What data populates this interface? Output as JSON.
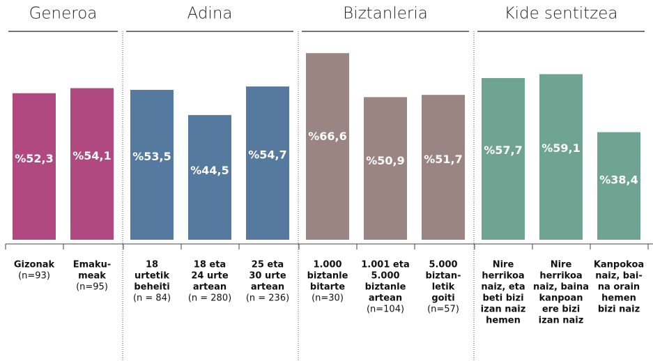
{
  "chart_data": {
    "type": "bar",
    "groups": [
      {
        "title": "Generoa",
        "color": "#b0497f",
        "categories": [
          {
            "lines": [
              "Gizonak"
            ],
            "n": "(n=93)"
          },
          {
            "lines": [
              "Emaku-",
              "meak"
            ],
            "n": "(n=95)"
          }
        ],
        "values": [
          52.3,
          54.1
        ],
        "value_labels": [
          "%52,3",
          "%54,1"
        ]
      },
      {
        "title": "Adina",
        "color": "#55799f",
        "categories": [
          {
            "lines": [
              "18",
              "urtetik",
              "beheiti"
            ],
            "n": "(n = 84)"
          },
          {
            "lines": [
              "18 eta",
              "24 urte",
              "artean"
            ],
            "n": "(n = 280)"
          },
          {
            "lines": [
              "25 eta",
              "30 urte",
              "artean"
            ],
            "n": "(n = 236)"
          }
        ],
        "values": [
          53.5,
          44.5,
          54.7
        ],
        "value_labels": [
          "%53,5",
          "%44,5",
          "%54,7"
        ]
      },
      {
        "title": "Biztanleria",
        "color": "#9a8582",
        "categories": [
          {
            "lines": [
              "1.000",
              "biztanle",
              "bitarte"
            ],
            "n": "(n=30)"
          },
          {
            "lines": [
              "1.001 eta",
              "5.000",
              "biztanle",
              "artean"
            ],
            "n": "(n=104)"
          },
          {
            "lines": [
              "5.000",
              "biztan-",
              "letik",
              "goiti"
            ],
            "n": "(n=57)"
          }
        ],
        "values": [
          66.6,
          50.9,
          51.7
        ],
        "value_labels": [
          "%66,6",
          "%50,9",
          "%51,7"
        ]
      },
      {
        "title": "Kide sentitzea",
        "color": "#6fa392",
        "categories": [
          {
            "lines": [
              "Nire",
              "herrikoa",
              "naiz, eta",
              "beti bizi",
              "izan naiz",
              "hemen"
            ]
          },
          {
            "lines": [
              "Nire",
              "herrikoa",
              "naiz, baina",
              "kanpoan",
              "ere bizi",
              "izan naiz"
            ]
          },
          {
            "lines": [
              "Kanpokoa",
              "naiz, bai-",
              "na orain",
              "hemen",
              "bizi naiz"
            ]
          }
        ],
        "values": [
          57.7,
          59.1,
          38.4
        ],
        "value_labels": [
          "%57,7",
          "%59,1",
          "%38,4"
        ]
      }
    ]
  }
}
